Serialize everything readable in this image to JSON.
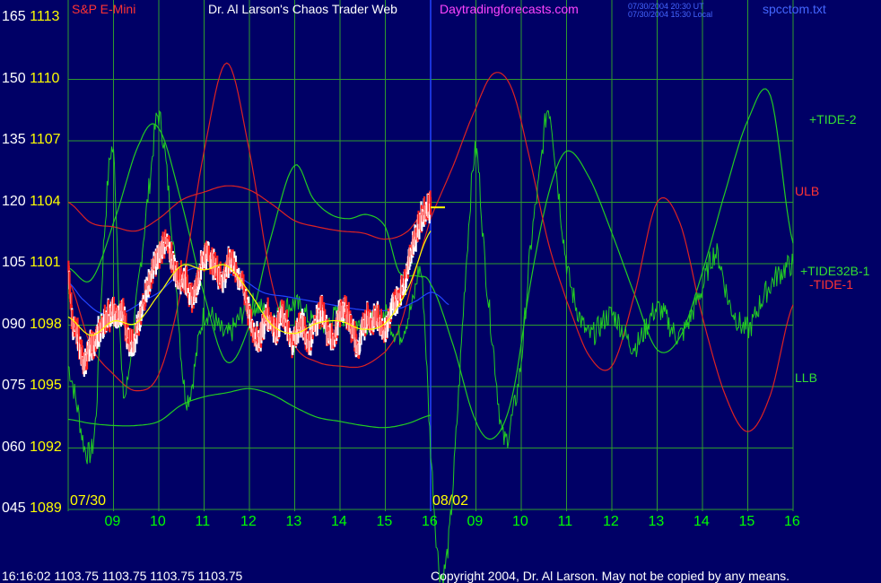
{
  "header": {
    "symbol": "S&P E-Mini",
    "title": "Dr. Al Larson's Chaos Trader Web",
    "site": "Daytradingforecasts.com",
    "time_ut": "07/30/2004 20:30 UT",
    "time_local": "07/30/2004 15:30 Local",
    "file": "spcctom.txt"
  },
  "footer": {
    "quote": "16:16:02  1103.75 1103.75 1103.75 1103.75",
    "copyright": "Copyright 2004, Dr. Al Larson. May not be copied by any means."
  },
  "colors": {
    "background": "#000066",
    "grid": "#2e9b2e",
    "price_up": "#ffffff",
    "price_down": "#ff2222",
    "tide": "#22cc22",
    "red_lines": "#dd2222",
    "blue_line": "#2244ff",
    "average": "#ffff00"
  },
  "chart_data": {
    "type": "line",
    "title": "S&P E-Mini",
    "ylim_left": [
      45,
      165
    ],
    "ylim_price": [
      1089,
      1113
    ],
    "yticks_left": [
      "045",
      "060",
      "075",
      "090",
      "105",
      "120",
      "135",
      "150",
      "165"
    ],
    "yticks_price": [
      "1089",
      "1092",
      "1095",
      "1098",
      "1101",
      "1104",
      "1107",
      "1110",
      "1113"
    ],
    "xticks": [
      "09",
      "10",
      "11",
      "12",
      "13",
      "14",
      "15",
      "16",
      "09",
      "10",
      "11",
      "12",
      "13",
      "14",
      "15",
      "16"
    ],
    "date_labels": [
      {
        "text": "07/30",
        "hour_index": 0
      },
      {
        "text": "08/02",
        "hour_index": 8
      }
    ],
    "last_price_marker": 1103.75,
    "series": [
      {
        "name": "+TIDE-2",
        "color": "#22cc22",
        "kind": "tide",
        "x": [
          0,
          0.5,
          1,
          1.6,
          2,
          2.5,
          3,
          3.5,
          4,
          4.5,
          5,
          5.4,
          5.8,
          6.2,
          6.6,
          7,
          7.3,
          7.7,
          8,
          8.5,
          9,
          9.4,
          9.8,
          10.2,
          10.6,
          11,
          11.5,
          12,
          12.5,
          13,
          13.5,
          14,
          14.5,
          15,
          15.5,
          16
        ],
        "y": [
          1100.8,
          1100.2,
          1103,
          1107,
          1107.6,
          1104,
          1099.5,
          1096.2,
          1098,
          1102.5,
          1105.8,
          1104.2,
          1103.4,
          1103.2,
          1103.4,
          1102.8,
          1100.6,
          1100.4,
          1100,
          1097,
          1093.3,
          1092.5,
          1094.5,
          1100,
          1104.4,
          1106.5,
          1105.2,
          1102.5,
          1099.5,
          1096.8,
          1097.4,
          1100.6,
          1104.5,
          1108,
          1109.2,
          1102
        ]
      },
      {
        "name": "ULB",
        "color": "#dd2222",
        "kind": "red",
        "x": [
          0,
          0.5,
          1,
          1.5,
          2,
          2.5,
          3,
          3.5,
          4,
          4.5,
          5,
          5.5,
          6,
          6.5,
          7,
          7.5,
          8
        ],
        "y": [
          1104,
          1103,
          1102.8,
          1102.6,
          1103.2,
          1104.1,
          1104.5,
          1104.8,
          1104.6,
          1103.9,
          1103.1,
          1102.8,
          1102.6,
          1102.5,
          1102.2,
          1102.6,
          1104
        ]
      },
      {
        "name": "LLB",
        "color": "#22cc22",
        "kind": "tide",
        "x": [
          0,
          0.5,
          1,
          1.5,
          2,
          2.5,
          3,
          3.5,
          4,
          4.5,
          5,
          5.5,
          6,
          6.5,
          7,
          7.5,
          8
        ],
        "y": [
          1093.4,
          1093.2,
          1093.1,
          1093.1,
          1093.3,
          1094.1,
          1094.5,
          1094.7,
          1094.9,
          1094.6,
          1094,
          1093.5,
          1093.3,
          1093.1,
          1093,
          1093.2,
          1093.6
        ]
      },
      {
        "name": "-TIDE-1",
        "color": "#dd2222",
        "kind": "red",
        "x": [
          0,
          0.5,
          1,
          1.5,
          2,
          2.5,
          3,
          3.5,
          4,
          4.5,
          5,
          5.5,
          6,
          6.5,
          7,
          7.3,
          7.6,
          8,
          8.5,
          9,
          9.4,
          9.8,
          10.2,
          10.6,
          11,
          11.5,
          12,
          12.5,
          13,
          13.5,
          14,
          14.5,
          15,
          15.5,
          16
        ],
        "y": [
          1100.2,
          1097,
          1095.6,
          1094.8,
          1095.6,
          1099.8,
          1106.5,
          1110.8,
          1106.5,
          1100,
          1097,
          1096.2,
          1096,
          1096,
          1096.7,
          1097.8,
          1100.2,
          1103.2,
          1105.8,
          1108.6,
          1110.3,
          1109.5,
          1106,
          1102,
          1099.2,
          1096.5,
          1096,
          1099.5,
          1104,
          1103,
          1098.4,
          1094.6,
          1092.8,
          1094.6,
          1099
        ]
      },
      {
        "name": "+TIDE32B-1",
        "color": "#22cc22",
        "kind": "noisy",
        "x": [
          0,
          0.2,
          0.4,
          0.6,
          0.8,
          1,
          1.2,
          1.4,
          1.6,
          1.8,
          2,
          2.3,
          2.6,
          3,
          3.5,
          4,
          4.5,
          5,
          5.5,
          6,
          6.5,
          7,
          7.3,
          7.6,
          7.8,
          8,
          8.2,
          8.4,
          8.6,
          8.8,
          9,
          9.2,
          9.4,
          9.6,
          9.8,
          10,
          10.2,
          10.4,
          10.6,
          10.8,
          11,
          11.2,
          11.5,
          12,
          12.5,
          13,
          13.5,
          14,
          14.3,
          14.6,
          15,
          15.3,
          15.6,
          16
        ],
        "y": [
          1096,
          1094,
          1091.8,
          1093.2,
          1102.5,
          1106.3,
          1095,
          1097,
          1101,
          1105,
          1108.2,
          1102.5,
          1094.5,
          1098.5,
          1097.5,
          1099,
          1098.5,
          1099,
          1098,
          1098.5,
          1098,
          1098.5,
          1097.5,
          1099,
          1100.4,
          1092,
          1086,
          1087.5,
          1094,
          1101.5,
          1106.5,
          1101,
          1096.5,
          1092.5,
          1093.5,
          1096.3,
          1101.6,
          1105.2,
          1108.6,
          1105,
          1101,
          1099,
          1097.5,
          1098.5,
          1097,
          1098.8,
          1097.5,
          1099.8,
          1101.5,
          1099,
          1097.8,
          1099.2,
          1100.3,
          1101
        ]
      }
    ],
    "price_candles": {
      "name": "S&P E-Mini",
      "x": [
        0,
        0.1,
        0.2,
        0.3,
        0.4,
        0.5,
        0.6,
        0.7,
        0.8,
        0.9,
        1.0,
        1.1,
        1.2,
        1.3,
        1.4,
        1.5,
        1.6,
        1.7,
        1.8,
        1.9,
        2.0,
        2.1,
        2.2,
        2.3,
        2.4,
        2.5,
        2.6,
        2.7,
        2.8,
        2.9,
        3.0,
        3.1,
        3.2,
        3.3,
        3.4,
        3.5,
        3.6,
        3.7,
        3.8,
        3.9,
        4.0,
        4.1,
        4.2,
        4.3,
        4.4,
        4.5,
        4.6,
        4.7,
        4.8,
        4.9,
        5.0,
        5.1,
        5.2,
        5.3,
        5.4,
        5.5,
        5.6,
        5.7,
        5.8,
        5.9,
        6.0,
        6.1,
        6.2,
        6.3,
        6.4,
        6.5,
        6.6,
        6.7,
        6.8,
        6.9,
        7.0,
        7.1,
        7.2,
        7.3,
        7.4,
        7.5,
        7.6,
        7.7,
        7.8,
        7.9,
        8.0
      ],
      "close": [
        1100.5,
        1098,
        1097.5,
        1096.5,
        1096.3,
        1097,
        1097.2,
        1097.8,
        1098.3,
        1098.5,
        1098.6,
        1098.4,
        1098.7,
        1097.5,
        1097.2,
        1097.6,
        1098.4,
        1099.6,
        1100.2,
        1100.9,
        1101.4,
        1102,
        1101.8,
        1101.2,
        1100.4,
        1100.3,
        1100.2,
        1099.4,
        1099.6,
        1100.6,
        1101.4,
        1101.5,
        1101,
        1100.6,
        1100.3,
        1100.7,
        1101.3,
        1100.6,
        1100.2,
        1099.6,
        1098.4,
        1097.6,
        1097.3,
        1097.9,
        1098.5,
        1098.1,
        1097.8,
        1098.4,
        1098.2,
        1097.2,
        1097.5,
        1098,
        1097.9,
        1097.2,
        1097.7,
        1098.4,
        1098.7,
        1097.8,
        1097.4,
        1097.6,
        1098.6,
        1098.8,
        1098.2,
        1097.6,
        1096.8,
        1097.8,
        1098.5,
        1098.1,
        1098.4,
        1098.1,
        1097.8,
        1098.5,
        1099.1,
        1099.4,
        1100,
        1101,
        1102,
        1102.6,
        1103.3,
        1103.75,
        1103.75
      ]
    },
    "moving_average": {
      "name": "average",
      "x": [
        0,
        0.5,
        1,
        1.5,
        2,
        2.5,
        3,
        3.5,
        4,
        4.5,
        5,
        5.5,
        6,
        6.5,
        7,
        7.5,
        8
      ],
      "y": [
        1098.4,
        1097.5,
        1098.2,
        1098.1,
        1099.5,
        1100.9,
        1100.7,
        1100.9,
        1099.6,
        1098,
        1097.6,
        1098.1,
        1098.2,
        1097.8,
        1098.1,
        1099.8,
        1102.6
      ]
    },
    "blue_line": {
      "x": [
        0,
        0.3,
        0.7,
        1.2,
        1.7,
        2,
        2.3,
        2.8,
        3.3,
        3.8,
        4.3,
        4.8,
        5.3,
        5.8,
        6.3,
        6.8,
        7.3,
        7.7,
        8,
        8.2,
        8.4
      ],
      "y": [
        1100.1,
        1099.3,
        1098.6,
        1098.6,
        1099.2,
        1099.6,
        1100.2,
        1100.8,
        1100.6,
        1100.3,
        1099.6,
        1099.4,
        1099.2,
        1099,
        1098.8,
        1098.7,
        1098.8,
        1099.2,
        1099.6,
        1099.4,
        1099
      ]
    }
  }
}
